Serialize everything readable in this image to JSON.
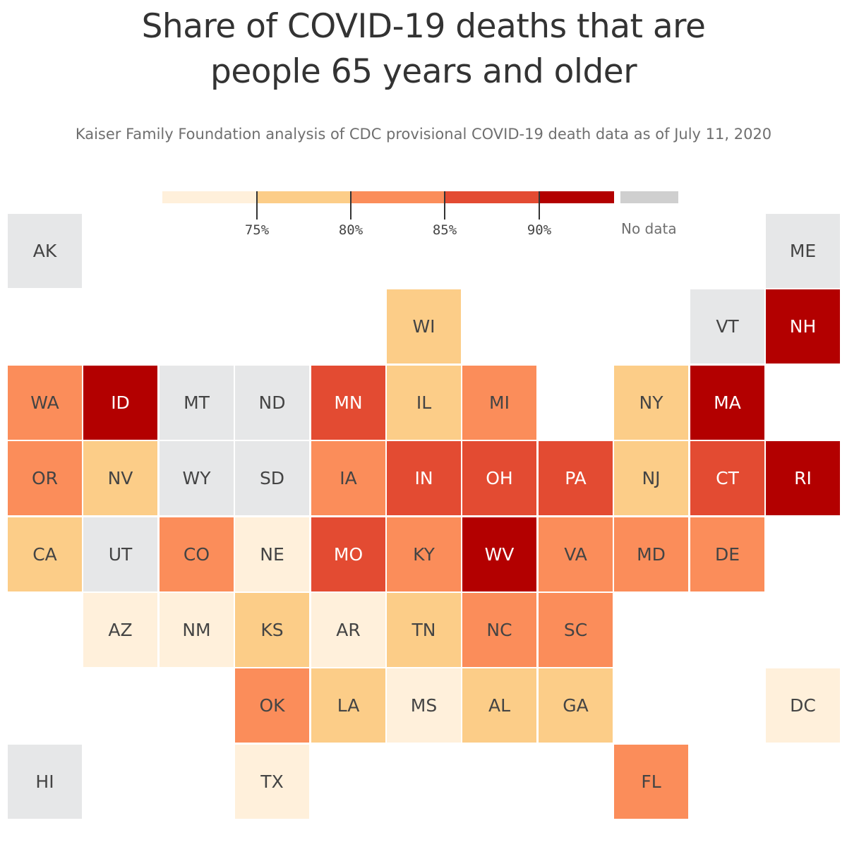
{
  "title": {
    "line1": "Share of COVID-19 deaths that are",
    "line2": "people 65 years and older"
  },
  "subtitle": "Kaiser Family Foundation analysis of CDC provisional COVID-19 death data as of July 11, 2020",
  "legend": {
    "ticks": [
      "75%",
      "80%",
      "85%",
      "90%"
    ],
    "no_data_label": "No data",
    "colors": {
      "bin1": "#fff0db",
      "bin2": "#fccd88",
      "bin3": "#fb8d5a",
      "bin4": "#e34b32",
      "bin5": "#b30000",
      "nodata": "#e6e7e8",
      "nodata_swatch": "#cfcfcf"
    }
  },
  "chart_data": {
    "type": "tile-grid-choropleth",
    "bins": [
      {
        "id": "bin1",
        "range": "<75%"
      },
      {
        "id": "bin2",
        "range": "75%–80%"
      },
      {
        "id": "bin3",
        "range": "80%–85%"
      },
      {
        "id": "bin4",
        "range": "85%–90%"
      },
      {
        "id": "bin5",
        "range": ">90%"
      },
      {
        "id": "nodata",
        "range": "No data"
      }
    ],
    "states": [
      {
        "abbr": "AK",
        "row": 0,
        "col": 0,
        "bin": "nodata"
      },
      {
        "abbr": "ME",
        "row": 0,
        "col": 10,
        "bin": "nodata"
      },
      {
        "abbr": "WI",
        "row": 1,
        "col": 5,
        "bin": "bin2"
      },
      {
        "abbr": "VT",
        "row": 1,
        "col": 9,
        "bin": "nodata"
      },
      {
        "abbr": "NH",
        "row": 1,
        "col": 10,
        "bin": "bin5"
      },
      {
        "abbr": "WA",
        "row": 2,
        "col": 0,
        "bin": "bin3"
      },
      {
        "abbr": "ID",
        "row": 2,
        "col": 1,
        "bin": "bin5"
      },
      {
        "abbr": "MT",
        "row": 2,
        "col": 2,
        "bin": "nodata"
      },
      {
        "abbr": "ND",
        "row": 2,
        "col": 3,
        "bin": "nodata"
      },
      {
        "abbr": "MN",
        "row": 2,
        "col": 4,
        "bin": "bin4"
      },
      {
        "abbr": "IL",
        "row": 2,
        "col": 5,
        "bin": "bin2"
      },
      {
        "abbr": "MI",
        "row": 2,
        "col": 6,
        "bin": "bin3"
      },
      {
        "abbr": "NY",
        "row": 2,
        "col": 8,
        "bin": "bin2"
      },
      {
        "abbr": "MA",
        "row": 2,
        "col": 9,
        "bin": "bin5"
      },
      {
        "abbr": "OR",
        "row": 3,
        "col": 0,
        "bin": "bin3"
      },
      {
        "abbr": "NV",
        "row": 3,
        "col": 1,
        "bin": "bin2"
      },
      {
        "abbr": "WY",
        "row": 3,
        "col": 2,
        "bin": "nodata"
      },
      {
        "abbr": "SD",
        "row": 3,
        "col": 3,
        "bin": "nodata"
      },
      {
        "abbr": "IA",
        "row": 3,
        "col": 4,
        "bin": "bin3"
      },
      {
        "abbr": "IN",
        "row": 3,
        "col": 5,
        "bin": "bin4"
      },
      {
        "abbr": "OH",
        "row": 3,
        "col": 6,
        "bin": "bin4"
      },
      {
        "abbr": "PA",
        "row": 3,
        "col": 7,
        "bin": "bin4"
      },
      {
        "abbr": "NJ",
        "row": 3,
        "col": 8,
        "bin": "bin2"
      },
      {
        "abbr": "CT",
        "row": 3,
        "col": 9,
        "bin": "bin4"
      },
      {
        "abbr": "RI",
        "row": 3,
        "col": 10,
        "bin": "bin5"
      },
      {
        "abbr": "CA",
        "row": 4,
        "col": 0,
        "bin": "bin2"
      },
      {
        "abbr": "UT",
        "row": 4,
        "col": 1,
        "bin": "nodata"
      },
      {
        "abbr": "CO",
        "row": 4,
        "col": 2,
        "bin": "bin3"
      },
      {
        "abbr": "NE",
        "row": 4,
        "col": 3,
        "bin": "bin1"
      },
      {
        "abbr": "MO",
        "row": 4,
        "col": 4,
        "bin": "bin4"
      },
      {
        "abbr": "KY",
        "row": 4,
        "col": 5,
        "bin": "bin3"
      },
      {
        "abbr": "WV",
        "row": 4,
        "col": 6,
        "bin": "bin5"
      },
      {
        "abbr": "VA",
        "row": 4,
        "col": 7,
        "bin": "bin3"
      },
      {
        "abbr": "MD",
        "row": 4,
        "col": 8,
        "bin": "bin3"
      },
      {
        "abbr": "DE",
        "row": 4,
        "col": 9,
        "bin": "bin3"
      },
      {
        "abbr": "AZ",
        "row": 5,
        "col": 1,
        "bin": "bin1"
      },
      {
        "abbr": "NM",
        "row": 5,
        "col": 2,
        "bin": "bin1"
      },
      {
        "abbr": "KS",
        "row": 5,
        "col": 3,
        "bin": "bin2"
      },
      {
        "abbr": "AR",
        "row": 5,
        "col": 4,
        "bin": "bin1"
      },
      {
        "abbr": "TN",
        "row": 5,
        "col": 5,
        "bin": "bin2"
      },
      {
        "abbr": "NC",
        "row": 5,
        "col": 6,
        "bin": "bin3"
      },
      {
        "abbr": "SC",
        "row": 5,
        "col": 7,
        "bin": "bin3"
      },
      {
        "abbr": "OK",
        "row": 6,
        "col": 3,
        "bin": "bin3"
      },
      {
        "abbr": "LA",
        "row": 6,
        "col": 4,
        "bin": "bin2"
      },
      {
        "abbr": "MS",
        "row": 6,
        "col": 5,
        "bin": "bin1"
      },
      {
        "abbr": "AL",
        "row": 6,
        "col": 6,
        "bin": "bin2"
      },
      {
        "abbr": "GA",
        "row": 6,
        "col": 7,
        "bin": "bin2"
      },
      {
        "abbr": "DC",
        "row": 6,
        "col": 10,
        "bin": "bin1"
      },
      {
        "abbr": "HI",
        "row": 7,
        "col": 0,
        "bin": "nodata"
      },
      {
        "abbr": "TX",
        "row": 7,
        "col": 3,
        "bin": "bin1"
      },
      {
        "abbr": "FL",
        "row": 7,
        "col": 8,
        "bin": "bin3"
      }
    ]
  }
}
